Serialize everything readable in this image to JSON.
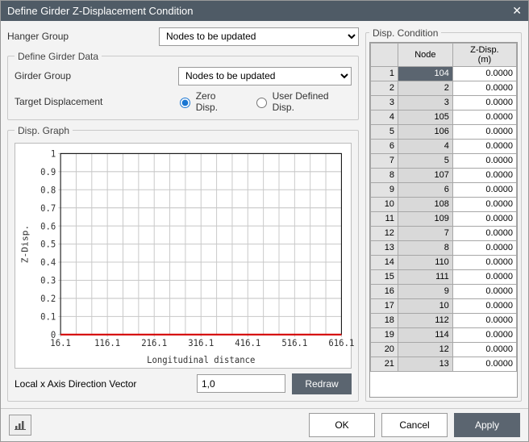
{
  "window": {
    "title": "Define Girder Z-Displacement Condition"
  },
  "hanger": {
    "label": "Hanger Group",
    "combo": "Nodes to be updated"
  },
  "girder": {
    "legend": "Define Girder Data",
    "group_label": "Girder Group",
    "group_combo": "Nodes to be updated",
    "target_label": "Target Displacement",
    "zero_label": "Zero Disp.",
    "user_label": "User Defined Disp."
  },
  "graph": {
    "legend": "Disp. Graph",
    "type": "line",
    "x_label": "Longitudinal distance",
    "y_label": "Z-Disp.",
    "xlim": [
      16.1,
      616.1
    ],
    "xtick_step": 100,
    "xticks": [
      "16.1",
      "116.1",
      "216.1",
      "316.1",
      "416.1",
      "516.1",
      "616.1"
    ],
    "ylim": [
      0,
      1
    ],
    "ytick_step": 0.1,
    "yticks": [
      "0",
      "0.1",
      "0.2",
      "0.3",
      "0.4",
      "0.5",
      "0.6",
      "0.7",
      "0.8",
      "0.9",
      "1"
    ],
    "series_color": "#d40000",
    "grid_color": "#c8c8c8",
    "background": "#ffffff",
    "series": [
      [
        16.1,
        0
      ],
      [
        616.1,
        0
      ]
    ],
    "x_subdiv": 3
  },
  "vector": {
    "label": "Local x Axis Direction Vector",
    "value": "1,0",
    "redraw": "Redraw"
  },
  "condition": {
    "legend": "Disp. Condition",
    "cols": [
      "",
      "Node",
      "Z-Disp.\n(m)"
    ],
    "selected_row": 0,
    "rows": [
      [
        1,
        104,
        "0.0000"
      ],
      [
        2,
        2,
        "0.0000"
      ],
      [
        3,
        3,
        "0.0000"
      ],
      [
        4,
        105,
        "0.0000"
      ],
      [
        5,
        106,
        "0.0000"
      ],
      [
        6,
        4,
        "0.0000"
      ],
      [
        7,
        5,
        "0.0000"
      ],
      [
        8,
        107,
        "0.0000"
      ],
      [
        9,
        6,
        "0.0000"
      ],
      [
        10,
        108,
        "0.0000"
      ],
      [
        11,
        109,
        "0.0000"
      ],
      [
        12,
        7,
        "0.0000"
      ],
      [
        13,
        8,
        "0.0000"
      ],
      [
        14,
        110,
        "0.0000"
      ],
      [
        15,
        111,
        "0.0000"
      ],
      [
        16,
        9,
        "0.0000"
      ],
      [
        17,
        10,
        "0.0000"
      ],
      [
        18,
        112,
        "0.0000"
      ],
      [
        19,
        114,
        "0.0000"
      ],
      [
        20,
        12,
        "0.0000"
      ],
      [
        21,
        13,
        "0.0000"
      ]
    ]
  },
  "footer": {
    "ok": "OK",
    "cancel": "Cancel",
    "apply": "Apply"
  },
  "colors": {
    "accent": "#1976d2",
    "titlebar": "#4f5b66"
  }
}
